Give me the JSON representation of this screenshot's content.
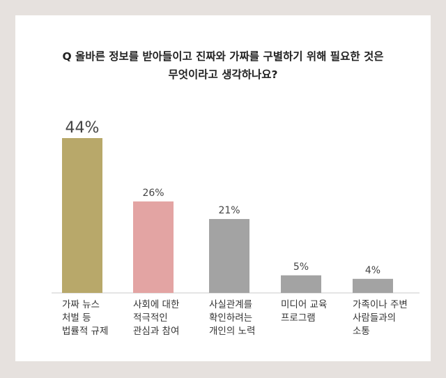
{
  "chart_data": {
    "type": "bar",
    "title": "Q 올바른 정보를 받아들이고 진짜와 가짜를 구별하기 위해 필요한 것은 무엇이라고 생각하나요?",
    "title_lines": [
      "Q 올바른 정보를 받아들이고 진짜와 가짜를 구별하기 위해 필요한 것은",
      "무엇이라고 생각하나요?"
    ],
    "categories": [
      "가짜 뉴스 처벌 등 법률적 규제",
      "사회에 대한 적극적인 관심과 참여",
      "사실관계를 확인하려는 개인의 노력",
      "미디어 교육 프로그램",
      "가족이나 주변 사람들과의 소통"
    ],
    "category_lines": [
      [
        "가짜 뉴스",
        "처벌 등",
        "법률적 규제"
      ],
      [
        "사회에 대한",
        "적극적인",
        "관심과 참여"
      ],
      [
        "사실관계를",
        "확인하려는",
        "개인의 노력"
      ],
      [
        "미디어 교육",
        "프로그램"
      ],
      [
        "가족이나 주변",
        "사람들과의",
        "소통"
      ]
    ],
    "values": [
      44,
      26,
      21,
      5,
      4
    ],
    "value_labels": [
      "44%",
      "26%",
      "21%",
      "5%",
      "4%"
    ],
    "colors": [
      "#b8a86a",
      "#e3a4a3",
      "#a3a3a3",
      "#a3a3a3",
      "#a3a3a3"
    ],
    "ylim": [
      0,
      44
    ],
    "xlabel": "",
    "ylabel": "",
    "grid": false,
    "legend": "none"
  }
}
